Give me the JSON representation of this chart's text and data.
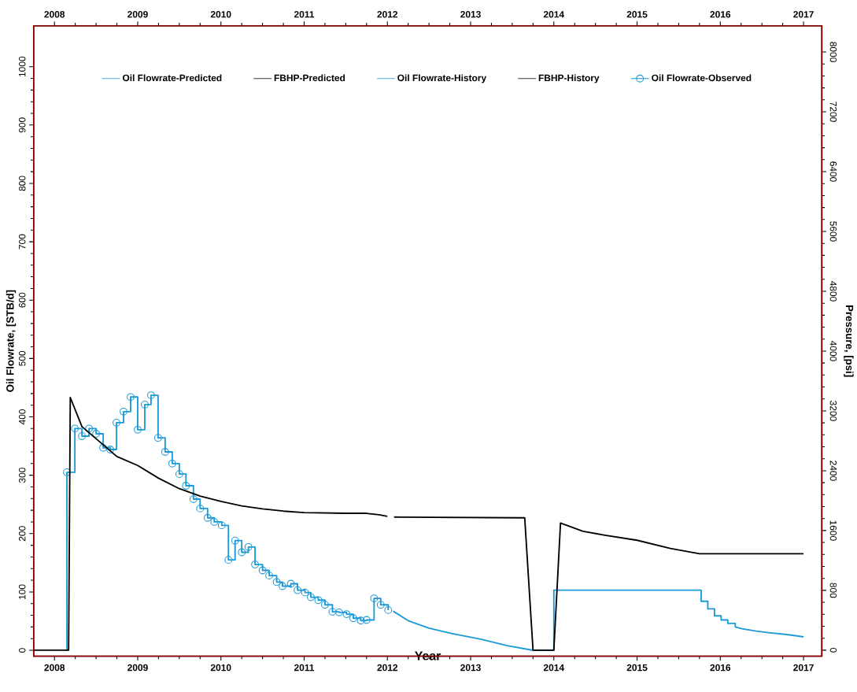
{
  "chart_data": {
    "type": "line",
    "xlabel": "Year",
    "ylabel": "Oil Flowrate, [STB/d]",
    "y2label": "Pressure, [psi]",
    "xlim": [
      2007.75,
      2017.22
    ],
    "xticks": [
      2008,
      2009,
      2010,
      2011,
      2012,
      2013,
      2014,
      2015,
      2016,
      2017
    ],
    "x2lim": [
      2007.75,
      2017.22
    ],
    "x2ticks": [
      2008,
      2009,
      2010,
      2011,
      2012,
      2013,
      2014,
      2015,
      2016,
      2017
    ],
    "ylim": [
      -10,
      1070
    ],
    "yticks": [
      0,
      100,
      200,
      300,
      400,
      500,
      600,
      700,
      800,
      900,
      1000
    ],
    "y2lim": [
      -80,
      8350
    ],
    "y2ticks": [
      0,
      800,
      1600,
      2400,
      3200,
      4000,
      4800,
      5600,
      6400,
      7200,
      8000
    ],
    "legend": "top",
    "grid": false,
    "series": [
      {
        "name": "Oil Flowrate-Predicted",
        "type": "line",
        "color": "#1b9ad6",
        "x": [
          2012.07,
          2012.26,
          2012.5,
          2012.77,
          2013.12,
          2013.44,
          2013.75,
          2014.0,
          2014.0,
          2015.77,
          2015.77,
          2015.85,
          2015.85,
          2015.93,
          2015.93,
          2016.01,
          2016.01,
          2016.09,
          2016.09,
          2016.18,
          2016.18,
          2016.26,
          2016.43,
          2016.6,
          2016.8,
          2017.0
        ],
        "values": [
          67,
          50,
          38,
          29,
          19,
          8,
          0,
          0,
          103,
          103,
          84,
          84,
          71,
          71,
          59,
          59,
          52,
          52,
          46,
          46,
          40,
          37,
          33,
          30,
          27,
          23
        ]
      },
      {
        "name": "FBHP-Predicted",
        "type": "line",
        "axis": "y2",
        "color": "#000000",
        "x": [
          2012.08,
          2013.65,
          2013.75,
          2014.0,
          2014.08,
          2014.35,
          2014.6,
          2015.0,
          2015.4,
          2015.75,
          2017.0
        ],
        "values": [
          1780,
          1770,
          0,
          0,
          1700,
          1590,
          1540,
          1470,
          1360,
          1290,
          1290
        ]
      },
      {
        "name": "Oil Flowrate-History",
        "type": "step",
        "color": "#1b9ad6",
        "x": [
          2008.14,
          2008.15,
          2008.245,
          2008.33,
          2008.415,
          2008.5,
          2008.585,
          2008.67,
          2008.745,
          2008.83,
          2008.915,
          2009.0,
          2009.085,
          2009.16,
          2009.245,
          2009.33,
          2009.415,
          2009.5,
          2009.58,
          2009.67,
          2009.75,
          2009.84,
          2009.92,
          2010.01,
          2010.09,
          2010.17,
          2010.25,
          2010.33,
          2010.41,
          2010.5,
          2010.58,
          2010.67,
          2010.74,
          2010.84,
          2010.92,
          2011.01,
          2011.08,
          2011.17,
          2011.25,
          2011.34,
          2011.42,
          2011.51,
          2011.59,
          2011.68,
          2011.75,
          2011.84,
          2011.92,
          2012.01
        ],
        "values": [
          0,
          305,
          380,
          367,
          380,
          371,
          347,
          344,
          390,
          409,
          434,
          378,
          421,
          437,
          364,
          340,
          320,
          302,
          282,
          259,
          243,
          227,
          220,
          214,
          155,
          188,
          168,
          177,
          147,
          137,
          128,
          117,
          110,
          114,
          103,
          99,
          91,
          86,
          78,
          66,
          65,
          62,
          55,
          51,
          52,
          89,
          78,
          69
        ]
      },
      {
        "name": "FBHP-History",
        "type": "line",
        "axis": "y2",
        "color": "#000000",
        "x": [
          2007.75,
          2008.17,
          2008.19,
          2008.33,
          2008.75,
          2009.0,
          2009.25,
          2009.5,
          2009.75,
          2010.0,
          2010.25,
          2010.5,
          2010.75,
          2011.0,
          2011.5,
          2011.75,
          2011.9,
          2012.0
        ],
        "values": [
          0,
          0,
          3380,
          2990,
          2590,
          2470,
          2300,
          2160,
          2060,
          1990,
          1930,
          1890,
          1860,
          1840,
          1830,
          1830,
          1810,
          1790
        ]
      },
      {
        "name": "Oil Flowrate-Observed",
        "type": "scatter",
        "marker": "circle",
        "color": "#1b9ad6",
        "x": [
          2008.15,
          2008.245,
          2008.33,
          2008.415,
          2008.5,
          2008.585,
          2008.67,
          2008.745,
          2008.83,
          2008.915,
          2009.0,
          2009.085,
          2009.16,
          2009.245,
          2009.33,
          2009.415,
          2009.5,
          2009.58,
          2009.67,
          2009.75,
          2009.84,
          2009.92,
          2010.01,
          2010.09,
          2010.17,
          2010.25,
          2010.33,
          2010.41,
          2010.5,
          2010.58,
          2010.67,
          2010.74,
          2010.84,
          2010.92,
          2011.01,
          2011.08,
          2011.17,
          2011.25,
          2011.34,
          2011.42,
          2011.51,
          2011.59,
          2011.68,
          2011.75,
          2011.84,
          2011.92,
          2012.01
        ],
        "values": [
          305,
          380,
          367,
          380,
          371,
          347,
          344,
          390,
          409,
          434,
          378,
          421,
          437,
          364,
          340,
          320,
          302,
          282,
          259,
          243,
          227,
          220,
          214,
          155,
          188,
          168,
          177,
          147,
          137,
          128,
          117,
          110,
          114,
          103,
          99,
          91,
          86,
          78,
          66,
          65,
          62,
          55,
          51,
          52,
          89,
          78,
          69
        ]
      }
    ]
  }
}
